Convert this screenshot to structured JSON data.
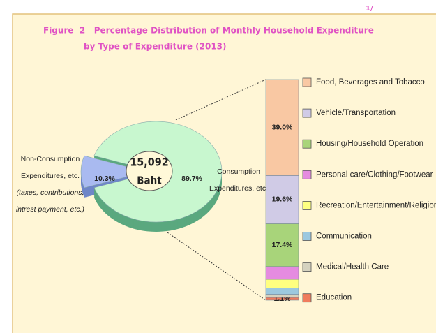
{
  "note": "1/",
  "title": [
    "Figure  2   Percentage Distribution of Monthly Household Expenditure",
    "by Type of Expenditure (2013)"
  ],
  "center_label": [
    "15,092",
    "Baht"
  ],
  "chart_data": [
    {
      "type": "pie",
      "categories": [
        [
          "Non-Consumption",
          "Expenditures, etc.",
          "(taxes, contributions,",
          "intrest payment, etc.)"
        ],
        [
          "Consumption",
          "Expenditures, etc."
        ]
      ],
      "values": [
        10.3,
        89.7
      ],
      "value_labels": [
        "10.3%",
        "89.7%"
      ],
      "colors": [
        "#a9baf0",
        "#c8f7cf"
      ],
      "side_colors": [
        "#6f86c8",
        "#5aa87f"
      ]
    },
    {
      "type": "stacked_bar",
      "categories": [
        "Food, Beverages and Tobacco",
        "Vehicle/Transportation",
        "Housing/Household Operation",
        "Personal care/Clothing/Footwear",
        "Recreation/Entertainment/Religion",
        "Communication",
        "Medical/Health Care",
        "Education"
      ],
      "values": [
        39.0,
        19.6,
        17.4,
        5.2,
        3.5,
        2.6,
        1.3,
        1.1
      ],
      "value_labels": [
        "39.0%",
        "19.6%",
        "17.4%",
        "5.2%",
        "3.5%",
        "2.6%",
        "1.3%",
        "1.1%"
      ],
      "colors": [
        "#f9c8a3",
        "#d0cbe6",
        "#a8d47a",
        "#e58be0",
        "#ffff80",
        "#9cc8df",
        "#d5d2bf",
        "#f07c5d"
      ]
    }
  ]
}
